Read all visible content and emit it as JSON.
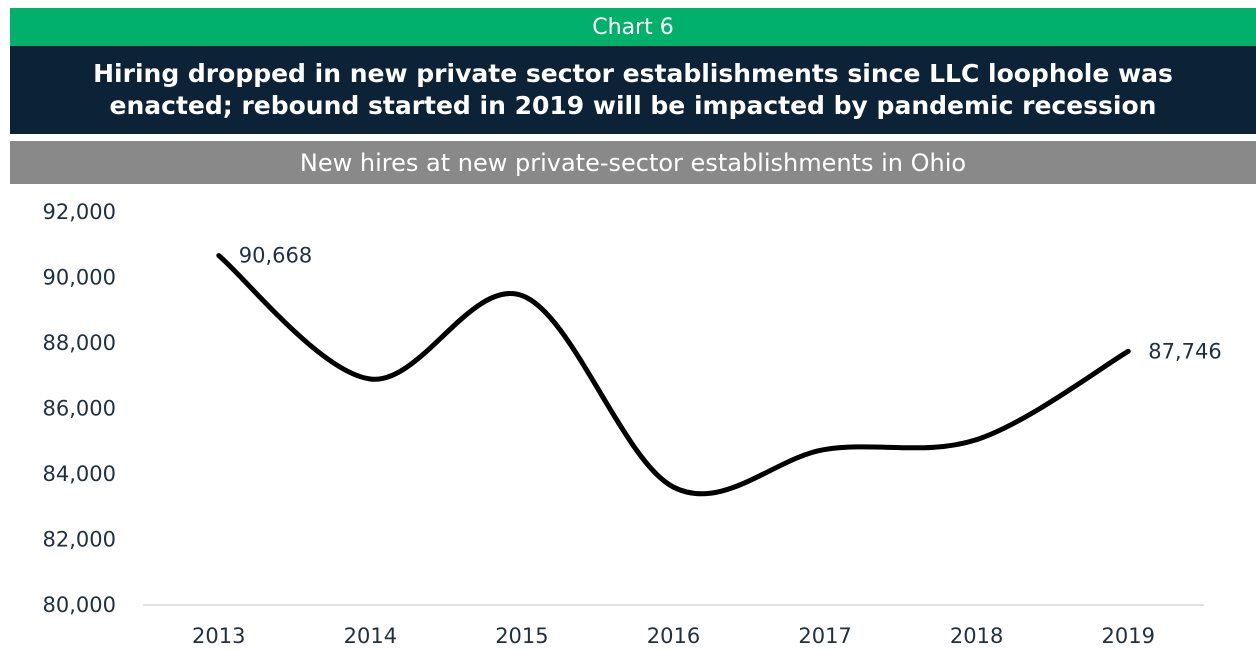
{
  "header": {
    "chart_label": "Chart 6",
    "title": "Hiring dropped in new private sector establishments since LLC loophole was enacted; rebound started in 2019 will be impacted by pandemic recession",
    "subtitle": "New hires at new private-sector establishments in Ohio"
  },
  "colors": {
    "label_bar": "#00b06b",
    "title_bar": "#0c2236",
    "subtitle_bar": "#898989",
    "line": "#000000",
    "axis": "#d9d9d9",
    "text": "#1f3044"
  },
  "chart_data": {
    "type": "line",
    "smooth": true,
    "categories": [
      "2013",
      "2014",
      "2015",
      "2016",
      "2017",
      "2018",
      "2019"
    ],
    "values": [
      90668,
      86900,
      89450,
      83600,
      84750,
      85050,
      87746
    ],
    "data_labels": [
      {
        "index": 0,
        "text": "90,668"
      },
      {
        "index": 6,
        "text": "87,746"
      }
    ],
    "ylim": [
      80000,
      92000
    ],
    "yticks": [
      "80,000",
      "82,000",
      "84,000",
      "86,000",
      "88,000",
      "90,000",
      "92,000"
    ],
    "ytick_values": [
      80000,
      82000,
      84000,
      86000,
      88000,
      90000,
      92000
    ],
    "grid": false,
    "legend": "none",
    "title": "",
    "xlabel": "",
    "ylabel": ""
  }
}
